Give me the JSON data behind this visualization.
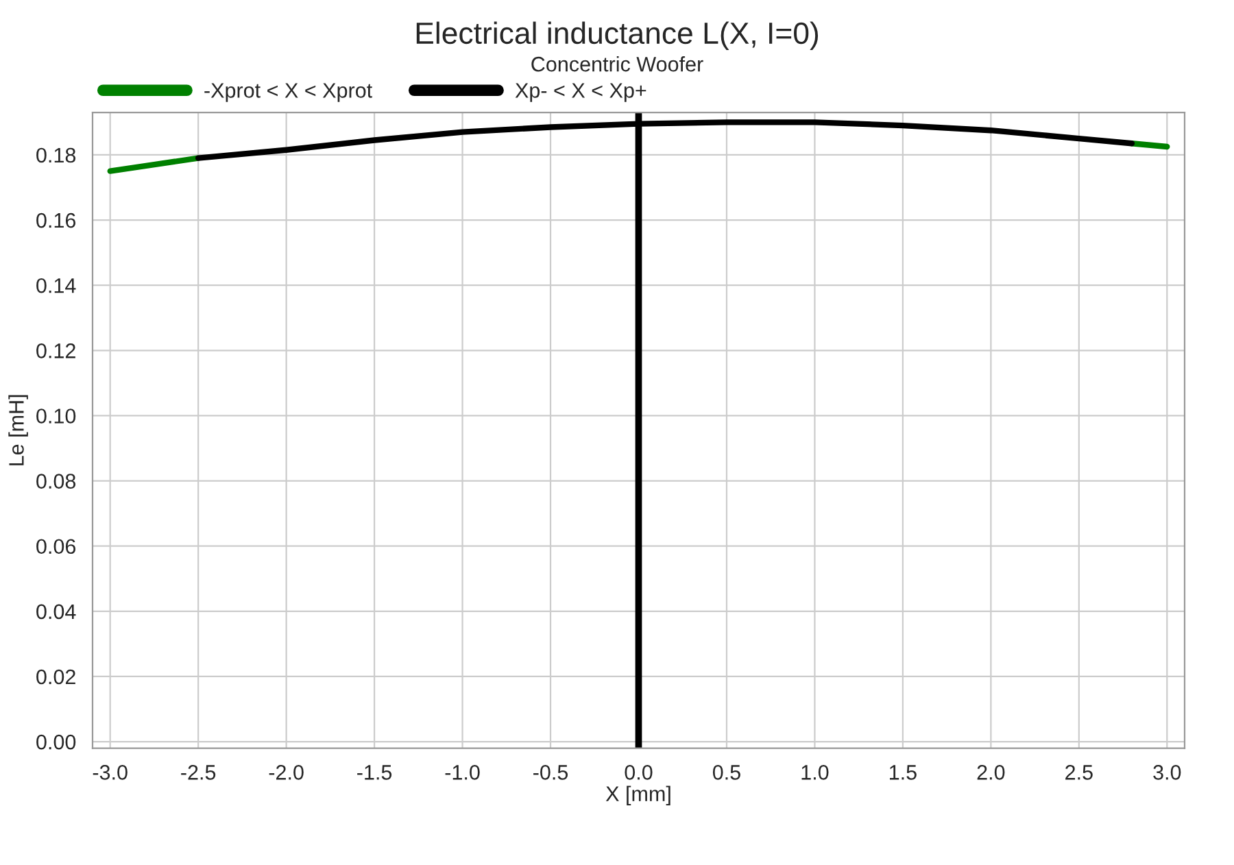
{
  "chart_data": {
    "type": "line",
    "title": "Electrical inductance L(X, I=0)",
    "subtitle": "Concentric Woofer",
    "xlabel": "X [mm]",
    "ylabel": "Le [mH]",
    "series": [
      {
        "name": "-Xprot < X < Xprot",
        "color": "#008000",
        "x": [
          -3.0,
          -2.75,
          -2.5,
          0.0,
          2.8,
          3.0
        ],
        "values": [
          0.175,
          0.177,
          0.179,
          null,
          0.1835,
          0.1825
        ]
      },
      {
        "name": "Xp- < X < Xp+",
        "color": "#000000",
        "x": [
          -2.5,
          -2.0,
          -1.5,
          -1.0,
          -0.5,
          0.0,
          0.5,
          1.0,
          1.5,
          2.0,
          2.5,
          2.8
        ],
        "values": [
          0.179,
          0.1815,
          0.1845,
          0.187,
          0.1885,
          0.1895,
          0.19,
          0.19,
          0.189,
          0.1875,
          0.185,
          0.1835
        ]
      }
    ],
    "xlim": [
      -3.1,
      3.1
    ],
    "xticks": [
      {
        "value": -3,
        "label": "-3.0"
      },
      {
        "value": -2.5,
        "label": "-2.5"
      },
      {
        "value": -2,
        "label": "-2.0"
      },
      {
        "value": -1.5,
        "label": "-1.5"
      },
      {
        "value": -1,
        "label": "-1.0"
      },
      {
        "value": -0.5,
        "label": "-0.5"
      },
      {
        "value": 0,
        "label": "0.0"
      },
      {
        "value": 0.5,
        "label": "0.5"
      },
      {
        "value": 1,
        "label": "1.0"
      },
      {
        "value": 1.5,
        "label": "1.5"
      },
      {
        "value": 2,
        "label": "2.0"
      },
      {
        "value": 2.5,
        "label": "2.5"
      },
      {
        "value": 3,
        "label": "3.0"
      }
    ],
    "ylim": [
      -0.002,
      0.193
    ],
    "yticks": [
      {
        "value": 0,
        "label": "0.00"
      },
      {
        "value": 0.02,
        "label": "0.02"
      },
      {
        "value": 0.04,
        "label": "0.04"
      },
      {
        "value": 0.06,
        "label": "0.06"
      },
      {
        "value": 0.08,
        "label": "0.08"
      },
      {
        "value": 0.1,
        "label": "0.10"
      },
      {
        "value": 0.12,
        "label": "0.12"
      },
      {
        "value": 0.14,
        "label": "0.14"
      },
      {
        "value": 0.16,
        "label": "0.16"
      },
      {
        "value": 0.18,
        "label": "0.18"
      }
    ],
    "ref_lines": [
      {
        "axis": "x",
        "value": 0,
        "color": "#000000"
      }
    ],
    "grid": true,
    "legend": "top",
    "line_style": "solid",
    "marker": "none"
  }
}
